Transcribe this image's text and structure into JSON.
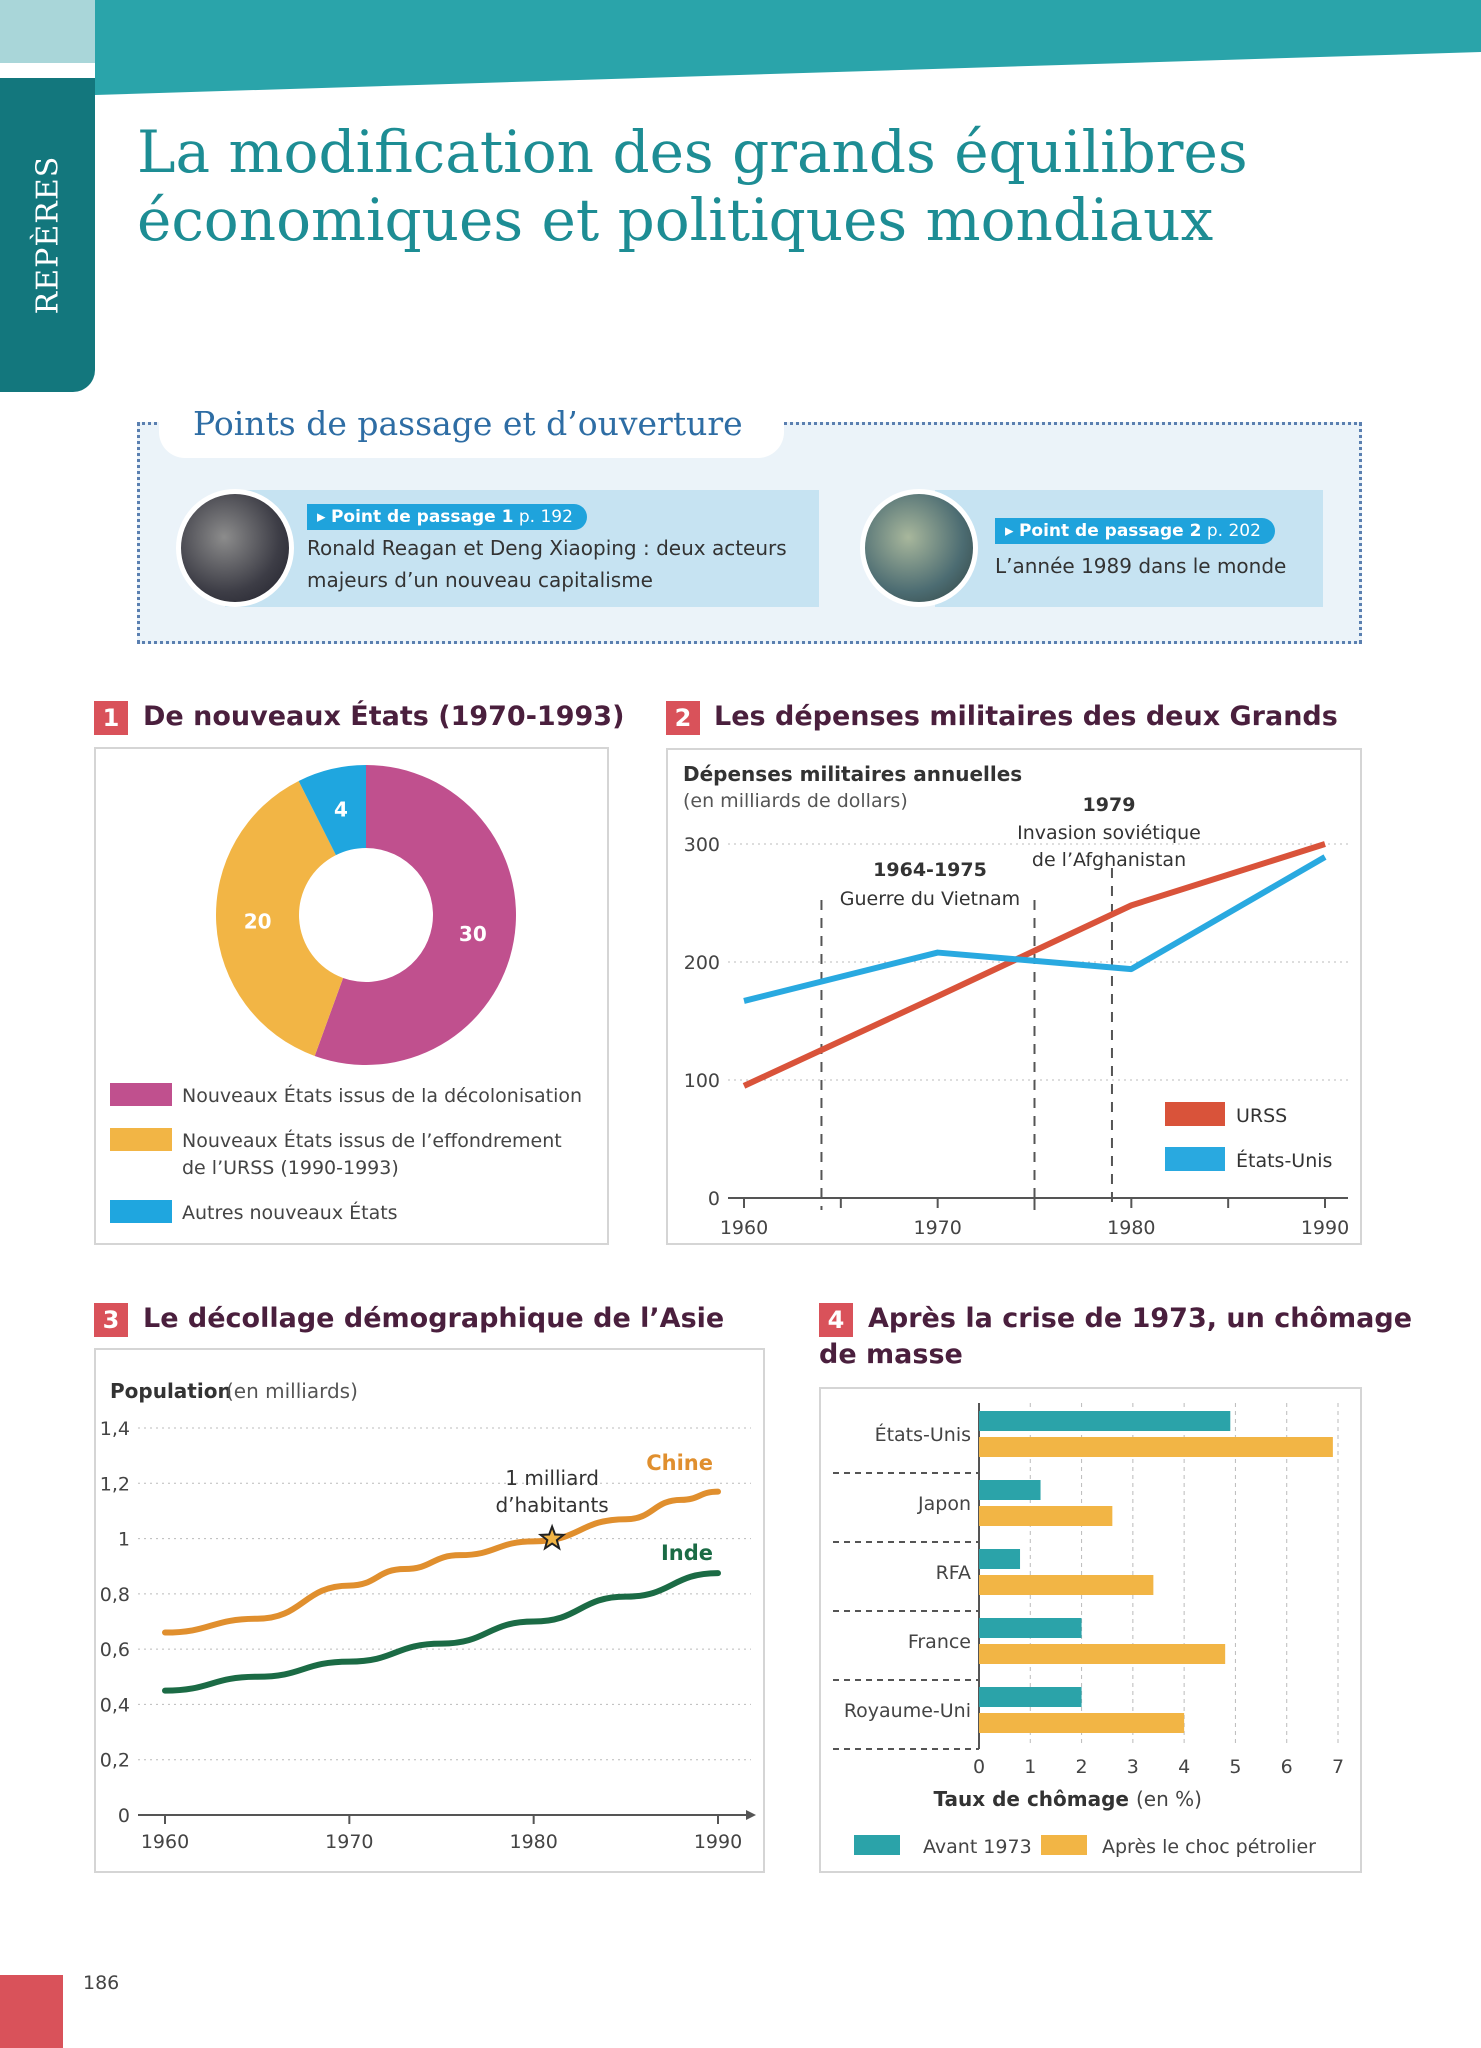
{
  "header": {
    "tab": "REPÈRES",
    "title_line1": "La modification des grands équilibres",
    "title_line2": "économiques et politiques mondiaux"
  },
  "passage": {
    "title": "Points de passage et d’ouverture",
    "cards": [
      {
        "label": "Point de passage 1",
        "page": "p. 192",
        "text_line1": "Ronald Reagan et Deng Xiaoping : deux acteurs",
        "text_line2": "majeurs d’un nouveau capitalisme"
      },
      {
        "label": "Point de passage 2",
        "page": "p. 202",
        "text_line1": "L’année 1989 dans le monde"
      }
    ]
  },
  "sections": [
    {
      "num": "1",
      "title": "De nouveaux États (1970-1993)"
    },
    {
      "num": "2",
      "title": "Les dépenses militaires des deux Grands"
    },
    {
      "num": "3",
      "title": "Le décollage démographique de l’Asie"
    },
    {
      "num": "4",
      "title_line1": "Après la crise de 1973, un chômage",
      "title_line2": "de masse"
    }
  ],
  "chart_data": [
    {
      "type": "pie",
      "donut": true,
      "slices": [
        {
          "label": "Nouveaux États issus de la décolonisation",
          "value": 30,
          "color": "#c0508e"
        },
        {
          "label_line1": "Nouveaux États issus de l’effondrement",
          "label_line2": "de l’URSS (1990-1993)",
          "value": 20,
          "color": "#f2b545"
        },
        {
          "label": "Autres nouveaux États",
          "value": 4,
          "color": "#1fa6df"
        }
      ],
      "legend": "bottom"
    },
    {
      "type": "line",
      "title": "Dépenses militaires annuelles",
      "subtitle": "(en milliards de dollars)",
      "xlim": [
        1960,
        1990
      ],
      "ylim": [
        0,
        300
      ],
      "xticks": [
        1960,
        1970,
        1980,
        1990
      ],
      "yticks": [
        0,
        100,
        200,
        300
      ],
      "grid": "horizontal dotted",
      "series": [
        {
          "name": "URSS",
          "color": "#d9533a",
          "x": [
            1960,
            1970,
            1980,
            1990
          ],
          "y": [
            95,
            171,
            248,
            300
          ]
        },
        {
          "name": "États-Unis",
          "color": "#29a9e0",
          "x": [
            1960,
            1970,
            1980,
            1990
          ],
          "y": [
            167,
            208,
            194,
            289
          ]
        }
      ],
      "annotations": [
        {
          "bold": "1964-1975",
          "text": "Guerre du Vietnam",
          "x": [
            1964,
            1975
          ]
        },
        {
          "bold": "1979",
          "text_line1": "Invasion soviétique",
          "text_line2": "de l’Afghanistan",
          "x": [
            1979
          ]
        }
      ],
      "legend": "bottom-right"
    },
    {
      "type": "line",
      "title": "Population",
      "subtitle": "(en milliards)",
      "xlim": [
        1960,
        1990
      ],
      "ylim": [
        0,
        1.4
      ],
      "xticks": [
        1960,
        1970,
        1980,
        1990
      ],
      "yticks": [
        "0",
        "0,2",
        "0,4",
        "0,6",
        "0,8",
        "1",
        "1,2",
        "1,4"
      ],
      "grid": "horizontal dotted",
      "series": [
        {
          "name": "Chine",
          "color": "#e08f2e",
          "x": [
            1960,
            1965,
            1970,
            1973,
            1976,
            1980,
            1985,
            1988,
            1990
          ],
          "y": [
            0.66,
            0.71,
            0.83,
            0.89,
            0.94,
            0.99,
            1.07,
            1.14,
            1.17
          ]
        },
        {
          "name": "Inde",
          "color": "#1b6b45",
          "x": [
            1960,
            1965,
            1970,
            1975,
            1980,
            1985,
            1990
          ],
          "y": [
            0.45,
            0.5,
            0.555,
            0.62,
            0.7,
            0.79,
            0.875
          ]
        }
      ],
      "annotations": [
        {
          "text_line1": "1 milliard",
          "text_line2": "d’habitants",
          "x": 1981,
          "y": 1.0,
          "marker": "star"
        }
      ]
    },
    {
      "type": "bar",
      "orientation": "horizontal",
      "categories": [
        "États-Unis",
        "Japon",
        "RFA",
        "France",
        "Royaume-Uni"
      ],
      "series": [
        {
          "name": "Avant 1973",
          "color": "#2ba3a9",
          "values": [
            4.9,
            1.2,
            0.8,
            2.0,
            2.0
          ]
        },
        {
          "name": "Après le choc pétrolier",
          "color": "#f2b545",
          "values": [
            6.9,
            2.6,
            3.4,
            4.8,
            4.0
          ]
        }
      ],
      "xlabel_bold": "Taux de chômage",
      "xlabel_unit": "(en %)",
      "xlim": [
        0,
        7
      ],
      "xticks": [
        0,
        1,
        2,
        3,
        4,
        5,
        6,
        7
      ],
      "legend": "bottom"
    }
  ],
  "footer": {
    "page": "186"
  }
}
